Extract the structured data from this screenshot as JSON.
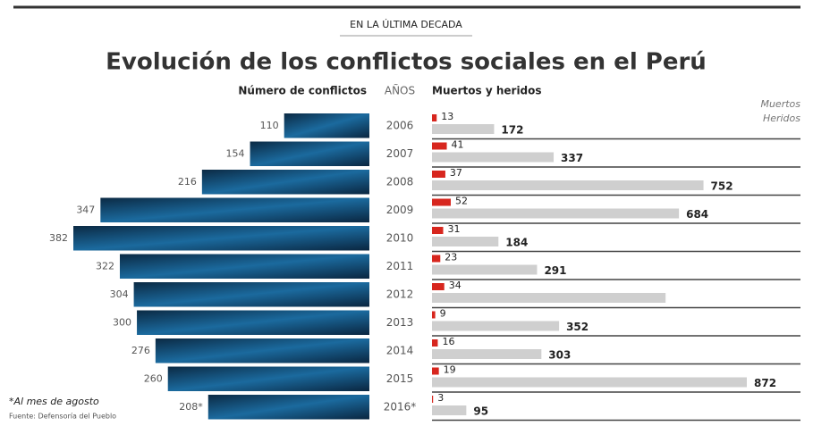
{
  "chart_data": {
    "type": "mirrored-bar",
    "kicker": "EN LA ÚLTIMA DECADA",
    "title": "Evolución de los conflictos sociales en el Perú",
    "left_header": "Número de conflictos",
    "category_header": "AÑOS",
    "right_header": "Muertos y heridos",
    "categories": [
      "2006",
      "2007",
      "2008",
      "2009",
      "2010",
      "2011",
      "2012",
      "2013",
      "2014",
      "2015",
      "2016*"
    ],
    "conflicts": {
      "color": "#1b6a9e",
      "values": [
        110,
        154,
        216,
        347,
        382,
        322,
        304,
        300,
        276,
        260,
        208
      ],
      "value_labels": [
        "110",
        "154",
        "216",
        "347",
        "382",
        "322",
        "304",
        "300",
        "276",
        "260",
        "208*"
      ]
    },
    "series": [
      {
        "name": "Muertos",
        "color": "#d7261e",
        "values": [
          13,
          41,
          37,
          52,
          31,
          23,
          34,
          9,
          16,
          19,
          3
        ]
      },
      {
        "name": "Heridos",
        "color": "#cfcfcf",
        "values": [
          172,
          337,
          752,
          684,
          184,
          291,
          647,
          352,
          303,
          872,
          95
        ],
        "value_labels": [
          "172",
          "337",
          "752",
          "684",
          "184",
          "291",
          null,
          "352",
          "303",
          "872",
          "95"
        ]
      }
    ],
    "footnote": "*Al mes de agosto",
    "source": "Fuente: Defensoría del Pueblo"
  }
}
